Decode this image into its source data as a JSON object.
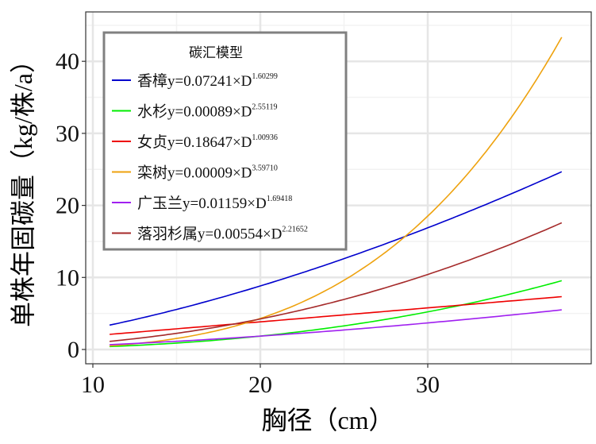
{
  "chart_data": {
    "type": "line",
    "xlabel": "胸径（cm）",
    "ylabel": "单株年固碳量（kg/株/a）",
    "xlim": [
      9.6,
      39.8
    ],
    "ylim": [
      -2,
      46.5
    ],
    "x_ticks": [
      10,
      20,
      30
    ],
    "y_ticks": [
      0,
      10,
      20,
      30,
      40
    ],
    "x_range": [
      11,
      38
    ],
    "grid": true,
    "legend": {
      "title": "碳汇模型",
      "placement": "top-left"
    },
    "series": [
      {
        "name": "香樟",
        "formula": "y=0.07241×D",
        "exp_label": "1.60299",
        "a": 0.07241,
        "b": 1.60299,
        "color": "#0000cd"
      },
      {
        "name": "水杉",
        "formula": "y=0.00089×D",
        "exp_label": "2.55119",
        "a": 0.00089,
        "b": 2.55119,
        "color": "#00ee00"
      },
      {
        "name": "女贞",
        "formula": "y=0.18647×D",
        "exp_label": "1.00936",
        "a": 0.18647,
        "b": 1.00936,
        "color": "#ee0000"
      },
      {
        "name": "栾树",
        "formula": "y=0.00009×D",
        "exp_label": "3.59710",
        "a": 9e-05,
        "b": 3.5971,
        "color": "#eea20e"
      },
      {
        "name": "广玉兰",
        "formula": "y=0.01159×D",
        "exp_label": "1.69418",
        "a": 0.01159,
        "b": 1.69418,
        "color": "#a020f0"
      },
      {
        "name": "落羽杉属",
        "formula": "y=0.00554×D",
        "exp_label": "2.21652",
        "a": 0.00554,
        "b": 2.21652,
        "color": "#a52a2a"
      }
    ]
  }
}
